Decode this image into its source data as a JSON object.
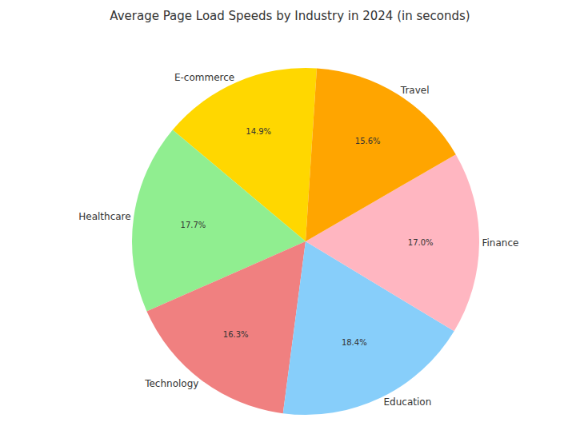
{
  "chart_data": {
    "type": "pie",
    "title": "Average Page Load Speeds by Industry in 2024 (in seconds)",
    "categories": [
      "E-commerce",
      "Healthcare",
      "Technology",
      "Education",
      "Finance",
      "Travel"
    ],
    "values": [
      14.9,
      17.7,
      16.3,
      18.4,
      17.0,
      15.6
    ],
    "value_labels": [
      "14.9%",
      "17.7%",
      "16.3%",
      "18.4%",
      "17.0%",
      "15.6%"
    ],
    "colors": [
      "#FFD700",
      "#90EE90",
      "#F08080",
      "#87CEFA",
      "#FFB6C1",
      "#FFA500"
    ],
    "data_labels": true
  }
}
